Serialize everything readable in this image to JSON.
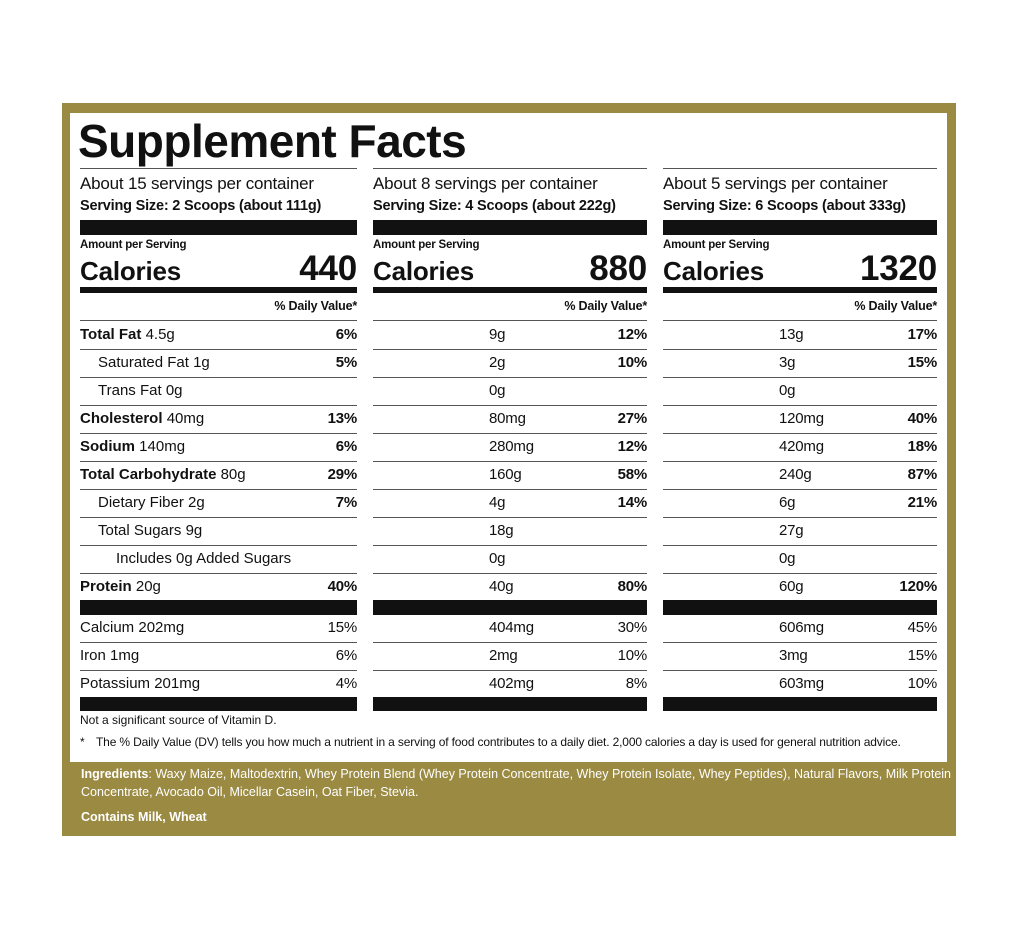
{
  "title": "Supplement Facts",
  "amount_label": "Amount per Serving",
  "calories_label": "Calories",
  "dv_header": "% Daily Value*",
  "nutrients": [
    {
      "name": "Total Fat",
      "bold": true,
      "indent": 0
    },
    {
      "name": "Saturated Fat",
      "bold": false,
      "indent": 1
    },
    {
      "name": "Trans Fat",
      "bold": false,
      "indent": 1
    },
    {
      "name": "Cholesterol",
      "bold": true,
      "indent": 0
    },
    {
      "name": "Sodium",
      "bold": true,
      "indent": 0
    },
    {
      "name": "Total Carbohydrate",
      "bold": true,
      "indent": 0
    },
    {
      "name": "Dietary Fiber",
      "bold": false,
      "indent": 1
    },
    {
      "name": "Total Sugars",
      "bold": false,
      "indent": 1
    },
    {
      "name": "Includes",
      "suffix": "Added Sugars",
      "bold": false,
      "indent": 2
    },
    {
      "name": "Protein",
      "bold": true,
      "indent": 0
    }
  ],
  "minerals": [
    "Calcium",
    "Iron",
    "Potassium"
  ],
  "columns": [
    {
      "servings": "About 15 servings per container",
      "serving_size": "Serving Size:  2 Scoops (about 111g)",
      "calories": "440",
      "amounts": [
        "4.5g",
        "1g",
        "0g",
        "40mg",
        "140mg",
        "80g",
        "2g",
        "9g",
        "0g",
        "20g"
      ],
      "dv": [
        "6%",
        "5%",
        null,
        "13%",
        "6%",
        "29%",
        "7%",
        null,
        null,
        "40%"
      ],
      "mineral_amounts": [
        "202mg",
        "1mg",
        "201mg"
      ],
      "mineral_dv": [
        "15%",
        "6%",
        "4%"
      ]
    },
    {
      "servings": "About 8 servings per container",
      "serving_size": "Serving Size: 4 Scoops (about 222g)",
      "calories": "880",
      "amounts": [
        "9g",
        "2g",
        "0g",
        "80mg",
        "280mg",
        "160g",
        "4g",
        "18g",
        "0g",
        "40g"
      ],
      "dv": [
        "12%",
        "10%",
        null,
        "27%",
        "12%",
        "58%",
        "14%",
        null,
        null,
        "80%"
      ],
      "mineral_amounts": [
        "404mg",
        "2mg",
        "402mg"
      ],
      "mineral_dv": [
        "30%",
        "10%",
        "8%"
      ]
    },
    {
      "servings": "About 5 servings per container",
      "serving_size": "Serving Size: 6 Scoops (about 333g)",
      "calories": "1320",
      "amounts": [
        "13g",
        "3g",
        "0g",
        "120mg",
        "420mg",
        "240g",
        "6g",
        "27g",
        "0g",
        "60g"
      ],
      "dv": [
        "17%",
        "15%",
        null,
        "40%",
        "18%",
        "87%",
        "21%",
        null,
        null,
        "120%"
      ],
      "mineral_amounts": [
        "606mg",
        "3mg",
        "603mg"
      ],
      "mineral_dv": [
        "45%",
        "15%",
        "10%"
      ]
    }
  ],
  "footnote_vitd": "Not a significant source of Vitamin D.",
  "footnote_star": "*",
  "footnote_dv": "The % Daily Value (DV) tells you how much a nutrient in a serving of food contributes to a daily diet. 2,000 calories a day is used for general nutrition advice.",
  "ingredients_label": "Ingredients",
  "ingredients_text": ": Waxy Maize, Maltodextrin, Whey Protein Blend (Whey Protein Concentrate, Whey Protein Isolate, Whey Peptides), Natural Flavors, Milk Protein Concentrate, Avocado Oil, Micellar Casein, Oat Fiber, Stevia.",
  "allergens": "Contains Milk, Wheat"
}
